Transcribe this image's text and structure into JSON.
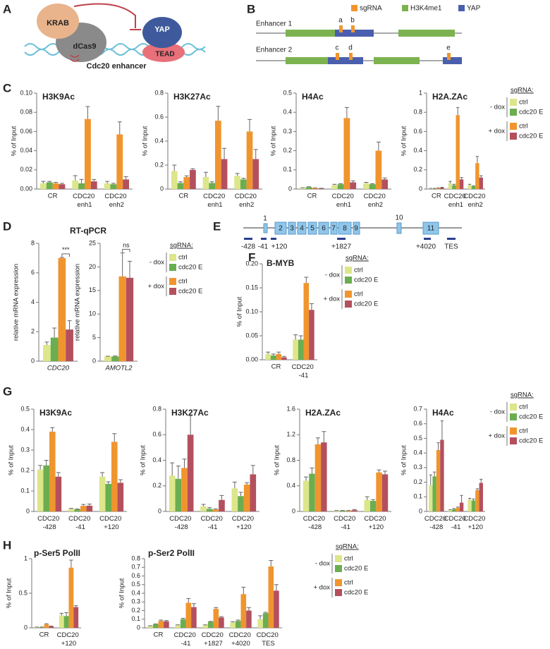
{
  "panel_labels": [
    "A",
    "B",
    "C",
    "D",
    "E",
    "F",
    "G",
    "H"
  ],
  "diagram_a": {
    "labels": [
      "KRAB",
      "dCas9",
      "YAP",
      "TEAD",
      "Cdc20 enhancer"
    ]
  },
  "diagram_b": {
    "legend": [
      "sgRNA",
      "H3K4me1",
      "YAP"
    ],
    "rows": [
      "Enhancer 1",
      "Enhancer 2"
    ],
    "sites": [
      "a",
      "b",
      "c",
      "d",
      "e"
    ]
  },
  "diagram_e": {
    "exons": [
      "1",
      "2",
      "3",
      "4",
      "5",
      "6",
      "7",
      "8",
      "9",
      "10",
      "11"
    ],
    "amplicons": [
      "-428",
      "-41",
      "+120",
      "+1827",
      "+4020",
      "TES"
    ]
  },
  "chart_data": [
    {
      "type": "bar",
      "title": "H3K9Ac",
      "ylabel": "% of Input",
      "categories": [
        "CR",
        "CDC20 enh1",
        "CDC20 enh2"
      ],
      "ylim": [
        0,
        0.1
      ],
      "yticks": [
        {
          "value": 0,
          "label": "0.00"
        },
        0.02,
        0.04,
        0.06,
        0.08,
        {
          "value": 0.1,
          "label": "0.10"
        }
      ],
      "series": [
        {
          "name": "ctrl",
          "color": "#dde68a",
          "values": [
            0.006,
            0.009,
            0.006
          ],
          "errors": [
            0.002,
            0.005,
            0.002
          ]
        },
        {
          "name": "cdc20 E",
          "color": "#6aae50",
          "values": [
            0.007,
            0.006,
            0.005
          ],
          "errors": [
            0.001,
            0.004,
            0.001
          ]
        },
        {
          "name": "ctrl",
          "color": "#f0952e",
          "values": [
            0.006,
            0.073,
            0.057
          ],
          "errors": [
            0.001,
            0.013,
            0.013
          ]
        },
        {
          "name": "cdc20 E",
          "color": "#b4505e",
          "values": [
            0.005,
            0.008,
            0.01
          ],
          "errors": [
            0.001,
            0.002,
            0.003
          ]
        }
      ]
    },
    {
      "type": "bar",
      "title": "H3K27Ac",
      "ylabel": "% of Input",
      "categories": [
        "CR",
        "CDC20 enh1",
        "CDC20 enh2"
      ],
      "ylim": [
        0,
        0.8
      ],
      "yticks": [
        0,
        0.2,
        0.4,
        0.6,
        0.8
      ],
      "series": [
        {
          "name": "ctrl",
          "color": "#dde68a",
          "values": [
            0.15,
            0.1,
            0.11
          ],
          "errors": [
            0.05,
            0.04,
            0.02
          ]
        },
        {
          "name": "cdc20 E",
          "color": "#6aae50",
          "values": [
            0.05,
            0.05,
            0.08
          ],
          "errors": [
            0.01,
            0.01,
            0.01
          ]
        },
        {
          "name": "ctrl",
          "color": "#f0952e",
          "values": [
            0.1,
            0.57,
            0.48
          ],
          "errors": [
            0.01,
            0.12,
            0.1
          ]
        },
        {
          "name": "cdc20 E",
          "color": "#b4505e",
          "values": [
            0.16,
            0.25,
            0.25
          ],
          "errors": [
            0.01,
            0.09,
            0.08
          ]
        }
      ]
    },
    {
      "type": "bar",
      "title": "H4Ac",
      "ylabel": "% of Input",
      "categories": [
        "CR",
        "CDC20 enh1",
        "CDC20 enh2"
      ],
      "ylim": [
        0,
        0.5
      ],
      "yticks": [
        0,
        0.1,
        0.2,
        0.3,
        0.4,
        0.5
      ],
      "series": [
        {
          "name": "ctrl",
          "color": "#dde68a",
          "values": [
            0.005,
            0.02,
            0.03
          ],
          "errors": [
            0.002,
            0.005,
            0.005
          ]
        },
        {
          "name": "cdc20 E",
          "color": "#6aae50",
          "values": [
            0.01,
            0.025,
            0.025
          ],
          "errors": [
            0.002,
            0.003,
            0.003
          ]
        },
        {
          "name": "ctrl",
          "color": "#f0952e",
          "values": [
            0.005,
            0.37,
            0.2
          ],
          "errors": [
            0.001,
            0.055,
            0.045
          ]
        },
        {
          "name": "cdc20 E",
          "color": "#b4505e",
          "values": [
            0.003,
            0.035,
            0.05
          ],
          "errors": [
            0.001,
            0.008,
            0.008
          ]
        }
      ]
    },
    {
      "type": "bar",
      "title": "H2A.ZAc",
      "ylabel": "% of Input",
      "categories": [
        "CR",
        "CDC20 enh1",
        "CDC20 enh2"
      ],
      "ylim": [
        0,
        1
      ],
      "yticks": [
        0,
        0.2,
        0.4,
        0.6,
        0.8,
        1
      ],
      "legend_title": "sgRNA:",
      "legend_groups": [
        "- dox",
        "+ dox"
      ],
      "series": [
        {
          "name": "ctrl",
          "color": "#dde68a",
          "values": [
            0.005,
            0.06,
            0.04
          ],
          "errors": [
            0.002,
            0.02,
            0.01
          ]
        },
        {
          "name": "cdc20 E",
          "color": "#6aae50",
          "values": [
            0.005,
            0.04,
            0.03
          ],
          "errors": [
            0.002,
            0.01,
            0.005
          ]
        },
        {
          "name": "ctrl",
          "color": "#f0952e",
          "values": [
            0.01,
            0.77,
            0.27
          ],
          "errors": [
            0.003,
            0.08,
            0.07
          ]
        },
        {
          "name": "cdc20 E",
          "color": "#b4505e",
          "values": [
            0.015,
            0.1,
            0.12
          ],
          "errors": [
            0.003,
            0.02,
            0.02
          ]
        }
      ]
    },
    {
      "type": "bar",
      "title": "RT-qPCR",
      "ylabel": "relative mRNA expression",
      "categories": [
        "CDC20"
      ],
      "italic_categories": true,
      "ylim": [
        0,
        8
      ],
      "yticks": [
        0,
        2,
        4,
        6,
        8
      ],
      "significance": "***",
      "series": [
        {
          "name": "ctrl",
          "color": "#dde68a",
          "values": [
            1.1
          ],
          "errors": [
            0.2
          ]
        },
        {
          "name": "cdc20 E",
          "color": "#6aae50",
          "values": [
            1.6
          ],
          "errors": [
            0.65
          ]
        },
        {
          "name": "ctrl",
          "color": "#f0952e",
          "values": [
            7.0
          ],
          "errors": [
            0.05
          ]
        },
        {
          "name": "cdc20 E",
          "color": "#b4505e",
          "values": [
            2.15
          ],
          "errors": [
            0.6
          ]
        }
      ]
    },
    {
      "type": "bar",
      "ylabel": "relative mRNA expression",
      "categories": [
        "AMOTL2"
      ],
      "italic_categories": true,
      "ylim": [
        0,
        25
      ],
      "yticks": [
        0,
        5,
        10,
        15,
        20,
        25
      ],
      "significance": "ns",
      "legend_title": "sgRNA:",
      "legend_groups": [
        "- dox",
        "+ dox"
      ],
      "series": [
        {
          "name": "ctrl",
          "color": "#dde68a",
          "values": [
            1
          ],
          "errors": [
            0.05
          ]
        },
        {
          "name": "cdc20 E",
          "color": "#6aae50",
          "values": [
            1
          ],
          "errors": [
            0.1
          ]
        },
        {
          "name": "ctrl",
          "color": "#f0952e",
          "values": [
            18
          ],
          "errors": [
            5
          ]
        },
        {
          "name": "cdc20 E",
          "color": "#b4505e",
          "values": [
            17.7
          ],
          "errors": [
            3.5
          ]
        }
      ]
    },
    {
      "type": "bar",
      "title": "B-MYB",
      "ylabel": "% of Input",
      "categories": [
        "CR",
        "CDC20 -41"
      ],
      "ylim": [
        0,
        0.2
      ],
      "yticks": [
        {
          "value": 0,
          "label": "0.00"
        },
        0.05,
        {
          "value": 0.1,
          "label": "0.10"
        },
        0.15,
        {
          "value": 0.2,
          "label": "0.20"
        }
      ],
      "legend_title": "sgRNA:",
      "legend_groups": [
        "- dox",
        "+ dox"
      ],
      "series": [
        {
          "name": "ctrl",
          "color": "#dde68a",
          "values": [
            0.012,
            0.042
          ],
          "errors": [
            0.004,
            0.01
          ]
        },
        {
          "name": "cdc20 E",
          "color": "#6aae50",
          "values": [
            0.009,
            0.042
          ],
          "errors": [
            0.003,
            0.008
          ]
        },
        {
          "name": "ctrl",
          "color": "#f0952e",
          "values": [
            0.012,
            0.16
          ],
          "errors": [
            0.004,
            0.012
          ]
        },
        {
          "name": "cdc20 E",
          "color": "#b4505e",
          "values": [
            0.005,
            0.104
          ],
          "errors": [
            0.002,
            0.013
          ]
        }
      ]
    },
    {
      "type": "bar",
      "title": "H3K9Ac",
      "ylabel": "% of Input",
      "categories": [
        "CDC20 -428",
        "CDC20 -41",
        "CDC20 +120"
      ],
      "ylim": [
        0,
        0.5
      ],
      "yticks": [
        0,
        0.1,
        0.2,
        0.3,
        0.4,
        0.5
      ],
      "series": [
        {
          "name": "ctrl",
          "color": "#dde68a",
          "values": [
            0.205,
            0.013,
            0.17
          ],
          "errors": [
            0.02,
            0.002,
            0.02
          ]
        },
        {
          "name": "cdc20 E",
          "color": "#6aae50",
          "values": [
            0.225,
            0.01,
            0.135
          ],
          "errors": [
            0.025,
            0.002,
            0.01
          ]
        },
        {
          "name": "ctrl",
          "color": "#f0952e",
          "values": [
            0.39,
            0.027,
            0.34
          ],
          "errors": [
            0.02,
            0.007,
            0.04
          ]
        },
        {
          "name": "cdc20 E",
          "color": "#b4505e",
          "values": [
            0.17,
            0.028,
            0.14
          ],
          "errors": [
            0.02,
            0.008,
            0.015
          ]
        }
      ]
    },
    {
      "type": "bar",
      "title": "H3K27Ac",
      "ylabel": "% of Input",
      "categories": [
        "CDC20 -428",
        "CDC20 -41",
        "CDC20 +120"
      ],
      "ylim": [
        0,
        0.8
      ],
      "yticks": [
        0,
        0.2,
        0.4,
        0.6,
        0.8
      ],
      "series": [
        {
          "name": "ctrl",
          "color": "#dde68a",
          "values": [
            0.28,
            0.04,
            0.18
          ],
          "errors": [
            0.1,
            0.015,
            0.05
          ]
        },
        {
          "name": "cdc20 E",
          "color": "#6aae50",
          "values": [
            0.255,
            0.02,
            0.12
          ],
          "errors": [
            0.1,
            0.01,
            0.03
          ]
        },
        {
          "name": "ctrl",
          "color": "#f0952e",
          "values": [
            0.34,
            0.015,
            0.21
          ],
          "errors": [
            0.07,
            0.005,
            0.015
          ]
        },
        {
          "name": "cdc20 E",
          "color": "#b4505e",
          "values": [
            0.6,
            0.09,
            0.29
          ],
          "errors": [
            0.15,
            0.035,
            0.07
          ]
        }
      ]
    },
    {
      "type": "bar",
      "title": "H2A.ZAc",
      "ylabel": "% of Input",
      "categories": [
        "CDC20 -428",
        "CDC20 -41",
        "CDC20 +120"
      ],
      "ylim": [
        0,
        1.6
      ],
      "yticks": [
        0,
        0.4,
        0.8,
        1.2,
        1.6
      ],
      "series": [
        {
          "name": "ctrl",
          "color": "#dde68a",
          "values": [
            0.48,
            0.01,
            0.18
          ],
          "errors": [
            0.06,
            0.005,
            0.05
          ]
        },
        {
          "name": "cdc20 E",
          "color": "#6aae50",
          "values": [
            0.59,
            0.01,
            0.165
          ],
          "errors": [
            0.09,
            0.005,
            0.02
          ]
        },
        {
          "name": "ctrl",
          "color": "#f0952e",
          "values": [
            1.05,
            0.01,
            0.61
          ],
          "errors": [
            0.1,
            0.005,
            0.04
          ]
        },
        {
          "name": "cdc20 E",
          "color": "#b4505e",
          "values": [
            1.08,
            0.02,
            0.58
          ],
          "errors": [
            0.17,
            0.01,
            0.05
          ]
        }
      ]
    },
    {
      "type": "bar",
      "title": "H4Ac",
      "ylabel": "% of Input",
      "categories": [
        "CDC20 -428",
        "CDC20 -41",
        "CDC20 +120"
      ],
      "ylim": [
        0,
        0.7
      ],
      "yticks": [
        0,
        0.1,
        0.2,
        0.3,
        0.4,
        0.5,
        0.6,
        0.7
      ],
      "legend_title": "sgRNA:",
      "legend_groups": [
        "- dox",
        "+ dox"
      ],
      "series": [
        {
          "name": "ctrl",
          "color": "#dde68a",
          "values": [
            0.18,
            0.01,
            0.08
          ],
          "errors": [
            0.07,
            0.002,
            0.01
          ]
        },
        {
          "name": "cdc20 E",
          "color": "#6aae50",
          "values": [
            0.24,
            0.015,
            0.075
          ],
          "errors": [
            0.03,
            0.005,
            0.01
          ]
        },
        {
          "name": "ctrl",
          "color": "#f0952e",
          "values": [
            0.42,
            0.025,
            0.145
          ],
          "errors": [
            0.05,
            0.005,
            0.01
          ]
        },
        {
          "name": "cdc20 E",
          "color": "#b4505e",
          "values": [
            0.49,
            0.06,
            0.195
          ],
          "errors": [
            0.13,
            0.05,
            0.025
          ]
        }
      ]
    },
    {
      "type": "bar",
      "title": "p-Ser5 PolII",
      "ylabel": "% of Input",
      "categories": [
        "CR",
        "CDC20 +120"
      ],
      "ylim": [
        0,
        1
      ],
      "yticks": [
        0,
        0.5,
        1
      ],
      "series": [
        {
          "name": "ctrl",
          "color": "#dde68a",
          "values": [
            0.01,
            0.18
          ],
          "errors": [
            0.002,
            0.03
          ]
        },
        {
          "name": "cdc20 E",
          "color": "#6aae50",
          "values": [
            0.01,
            0.17
          ],
          "errors": [
            0.002,
            0.05
          ]
        },
        {
          "name": "ctrl",
          "color": "#f0952e",
          "values": [
            0.05,
            0.87
          ],
          "errors": [
            0.01,
            0.11
          ]
        },
        {
          "name": "cdc20 E",
          "color": "#b4505e",
          "values": [
            0.02,
            0.3
          ],
          "errors": [
            0.005,
            0.02
          ]
        }
      ]
    },
    {
      "type": "bar",
      "title": "p-Ser2 PolII",
      "ylabel": "% of Input",
      "categories": [
        "CR",
        "CDC20 -41",
        "CDC20 +1827",
        "CDC20 +4020",
        "CDC20 TES"
      ],
      "ylim": [
        0,
        0.8
      ],
      "yticks": [
        0,
        0.1,
        0.2,
        0.3,
        0.4,
        0.5,
        0.6,
        0.7,
        0.8
      ],
      "legend_title": "sgRNA:",
      "legend_groups": [
        "- dox",
        "+ dox"
      ],
      "series": [
        {
          "name": "ctrl",
          "color": "#dde68a",
          "values": [
            0.02,
            0.03,
            0.03,
            0.06,
            0.1
          ],
          "errors": [
            0.005,
            0.005,
            0.005,
            0.01,
            0.04
          ]
        },
        {
          "name": "cdc20 E",
          "color": "#6aae50",
          "values": [
            0.04,
            0.1,
            0.07,
            0.08,
            0.17
          ],
          "errors": [
            0.005,
            0.01,
            0.005,
            0.01,
            0.01
          ]
        },
        {
          "name": "ctrl",
          "color": "#f0952e",
          "values": [
            0.08,
            0.29,
            0.22,
            0.39,
            0.71
          ],
          "errors": [
            0.01,
            0.05,
            0.015,
            0.08,
            0.07
          ]
        },
        {
          "name": "cdc20 E",
          "color": "#b4505e",
          "values": [
            0.075,
            0.24,
            0.12,
            0.2,
            0.43
          ],
          "errors": [
            0.01,
            0.04,
            0.01,
            0.035,
            0.07
          ]
        }
      ]
    }
  ]
}
